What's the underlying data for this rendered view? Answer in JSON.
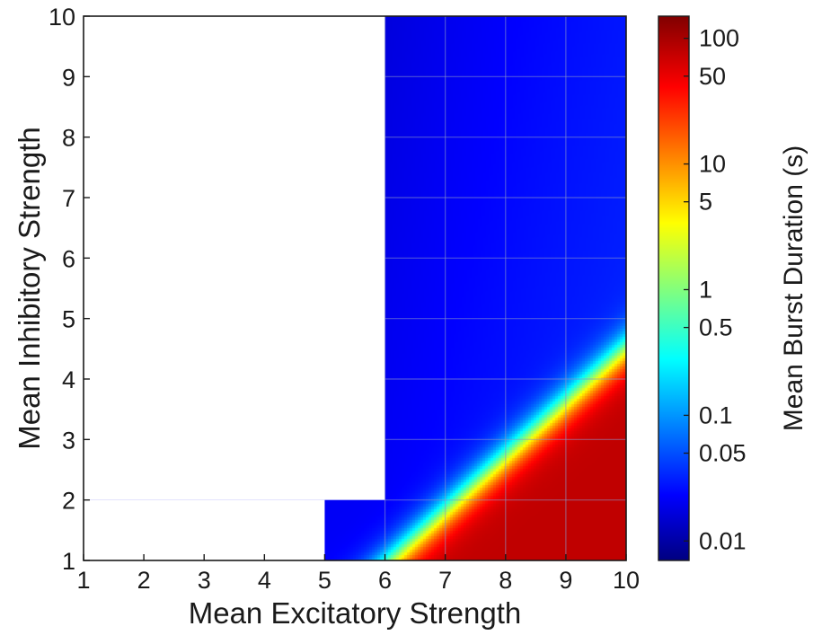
{
  "chart_data": {
    "type": "heatmap",
    "xlabel": "Mean Excitatory Strength",
    "ylabel": "Mean Inhibitory Strength",
    "xlim": [
      1,
      10
    ],
    "ylim": [
      1,
      10
    ],
    "x_ticks": [
      "1",
      "2",
      "3",
      "4",
      "5",
      "6",
      "7",
      "8",
      "9",
      "10"
    ],
    "y_ticks": [
      "1",
      "2",
      "3",
      "4",
      "5",
      "6",
      "7",
      "8",
      "9",
      "10"
    ],
    "grid": true,
    "colormap": "jet",
    "colorbar": {
      "label": "Mean Burst Duration (s)",
      "scale": "log",
      "range": [
        0.007,
        150
      ],
      "ticks": [
        {
          "value": 100,
          "label": "100"
        },
        {
          "value": 50,
          "label": "50"
        },
        {
          "value": 10,
          "label": "10"
        },
        {
          "value": 5,
          "label": "5"
        },
        {
          "value": 1,
          "label": "1"
        },
        {
          "value": 0.5,
          "label": "0.5"
        },
        {
          "value": 0.1,
          "label": "0.1"
        },
        {
          "value": 0.05,
          "label": "0.05"
        },
        {
          "value": 0.01,
          "label": "0.01"
        }
      ]
    },
    "no_data_regions": [
      {
        "x": [
          1,
          6
        ],
        "y": [
          2,
          10
        ]
      },
      {
        "x": [
          1,
          5
        ],
        "y": [
          1,
          2
        ]
      }
    ],
    "transition": {
      "line_slope": 0.9,
      "line_intercept": -4.5,
      "width": 0.8
    },
    "duration_values": {
      "low": 0.02,
      "high": 80
    },
    "colors": {
      "background": "#ffffff",
      "axis": "#1a1a1a",
      "grid": "#8a96c8"
    }
  }
}
